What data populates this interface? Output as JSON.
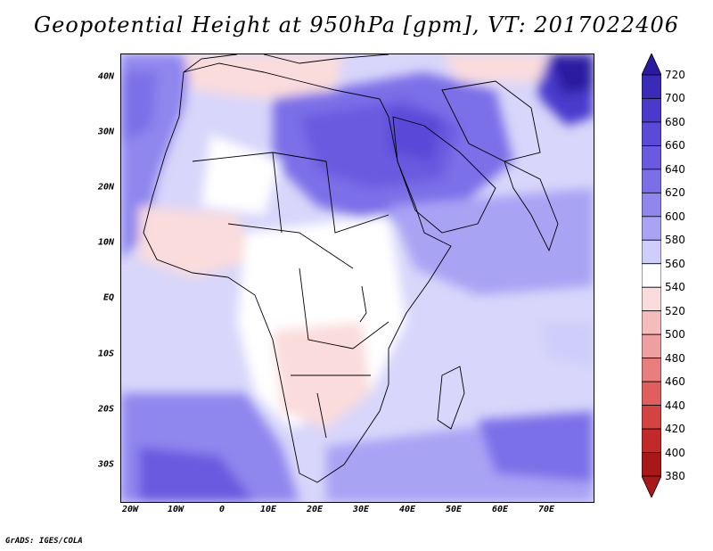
{
  "title": "Geopotential Height at 950hPa [gpm], VT: 2017022406",
  "lat_labels": [
    "40N",
    "30N",
    "20N",
    "10N",
    "EQ",
    "10S",
    "20S",
    "30S"
  ],
  "lon_labels": [
    "20W",
    "10W",
    "0",
    "10E",
    "20E",
    "30E",
    "40E",
    "50E",
    "60E",
    "70E"
  ],
  "colorbar": {
    "levels": [
      "720",
      "700",
      "680",
      "660",
      "640",
      "620",
      "600",
      "580",
      "560",
      "540",
      "520",
      "500",
      "480",
      "460",
      "440",
      "420",
      "400",
      "380"
    ],
    "colors": [
      "#2a1aa0",
      "#3a2ab8",
      "#4a3acc",
      "#5a4ad8",
      "#6a5ae0",
      "#7b6fe8",
      "#8f86ee",
      "#a9a3f4",
      "#cfcdfa",
      "#ffffff",
      "#fadcdc",
      "#f5bcbc",
      "#ee9f9f",
      "#e87e7e",
      "#e05e5e",
      "#d44242",
      "#c22a2a",
      "#a81818"
    ]
  },
  "credit": "GrADS: IGES/COLA"
}
